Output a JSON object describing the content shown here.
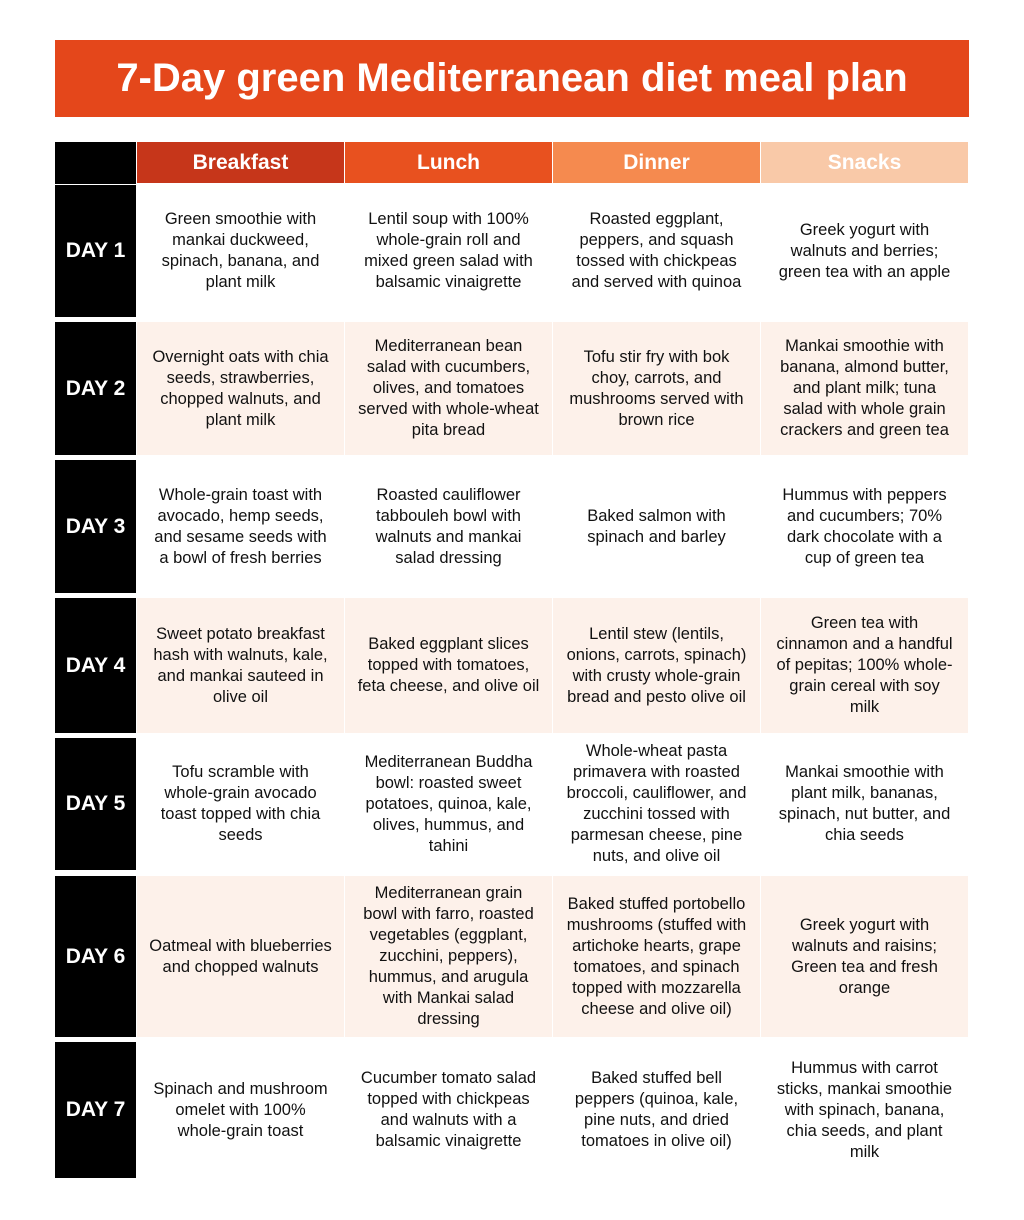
{
  "header": {
    "title": "7-Day green Mediterranean diet meal plan"
  },
  "table": {
    "columns": [
      "Breakfast",
      "Lunch",
      "Dinner",
      "Snacks"
    ],
    "rows": [
      {
        "day": "DAY 1",
        "meals": [
          "Green smoothie with mankai duckweed, spinach, banana, and plant milk",
          "Lentil soup with 100% whole-grain roll and mixed green salad with balsamic vinaigrette",
          "Roasted eggplant, peppers, and squash tossed with chickpeas and served with quinoa",
          "Greek yogurt with walnuts and berries; green tea with an apple"
        ]
      },
      {
        "day": "DAY 2",
        "meals": [
          "Overnight oats with chia seeds, strawberries, chopped walnuts, and plant milk",
          "Mediterranean bean salad with cucumbers, olives, and tomatoes served with whole-wheat pita bread",
          "Tofu stir fry with bok choy, carrots, and mushrooms served with brown rice",
          "Mankai smoothie with banana, almond butter, and plant milk; tuna salad with whole grain crackers and green tea"
        ]
      },
      {
        "day": "DAY 3",
        "meals": [
          "Whole-grain toast with avocado, hemp seeds, and sesame seeds with a bowl of fresh berries",
          "Roasted cauliflower tabbouleh bowl with walnuts and mankai salad dressing",
          "Baked salmon with spinach and barley",
          "Hummus with peppers and cucumbers; 70% dark chocolate with a cup of green tea"
        ]
      },
      {
        "day": "DAY 4",
        "meals": [
          "Sweet potato breakfast hash with walnuts, kale, and mankai sauteed in olive oil",
          "Baked eggplant slices topped with tomatoes, feta cheese, and olive oil",
          "Lentil stew (lentils, onions, carrots, spinach) with crusty whole-grain bread and pesto olive oil",
          "Green tea with cinnamon and a handful of pepitas; 100% whole-grain cereal with soy milk"
        ]
      },
      {
        "day": "DAY 5",
        "meals": [
          "Tofu scramble with whole-grain avocado toast topped with chia seeds",
          "Mediterranean Buddha bowl: roasted sweet potatoes, quinoa, kale, olives, hummus, and tahini",
          "Whole-wheat pasta primavera with roasted broccoli, cauliflower, and zucchini tossed with parmesan cheese, pine nuts, and olive oil",
          "Mankai smoothie with plant milk, bananas, spinach, nut butter, and chia seeds"
        ]
      },
      {
        "day": "DAY 6",
        "meals": [
          "Oatmeal with blueberries and chopped walnuts",
          "Mediterranean grain bowl with farro, roasted vegetables (eggplant, zucchini, peppers), hummus, and arugula with Mankai salad dressing",
          "Baked stuffed portobello mushrooms (stuffed with artichoke hearts, grape tomatoes, and spinach topped with mozzarella cheese and olive oil)",
          "Greek yogurt with walnuts and raisins; Green tea and fresh orange"
        ]
      },
      {
        "day": "DAY 7",
        "meals": [
          "Spinach and mushroom omelet with 100% whole-grain toast",
          "Cucumber tomato salad topped with chickpeas and walnuts with a balsamic vinaigrette",
          "Baked stuffed bell peppers (quinoa, kale, pine nuts, and dried tomatoes in olive oil)",
          "Hummus with carrot sticks, mankai smoothie with spinach, banana, chia seeds, and plant milk"
        ]
      }
    ]
  }
}
